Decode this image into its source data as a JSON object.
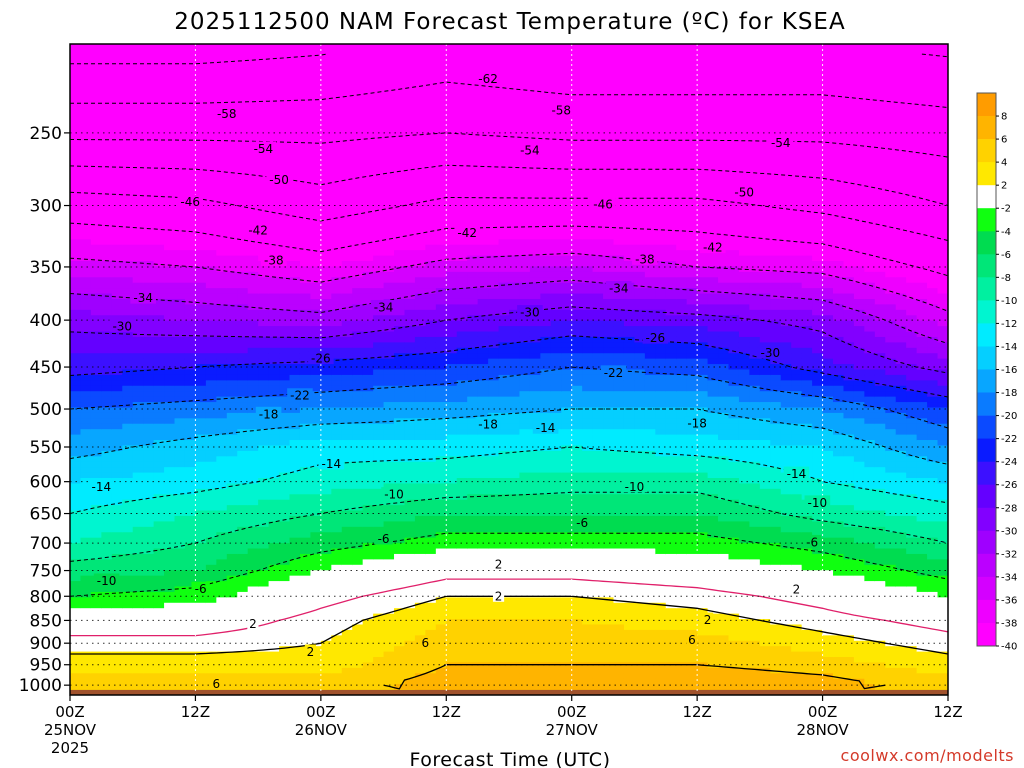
{
  "chart_data": {
    "type": "heatmap",
    "title": "2025112500 NAM Forecast Temperature (ºC) for KSEA",
    "xlabel": "Forecast Time (UTC)",
    "ylabel": "",
    "source": "coolwx.com/modelts",
    "y_scale": "log-pressure",
    "ylim": [
      1025,
      200
    ],
    "y_ticks": [
      250,
      300,
      350,
      400,
      450,
      500,
      550,
      600,
      650,
      700,
      750,
      800,
      850,
      900,
      950,
      1000
    ],
    "x_range_hours": [
      0,
      84
    ],
    "x_ticks": [
      {
        "hour": 0,
        "lines": [
          "00Z",
          "25NOV",
          "2025"
        ]
      },
      {
        "hour": 12,
        "lines": [
          "12Z"
        ]
      },
      {
        "hour": 24,
        "lines": [
          "00Z",
          "26NOV"
        ]
      },
      {
        "hour": 36,
        "lines": [
          "12Z"
        ]
      },
      {
        "hour": 48,
        "lines": [
          "00Z",
          "27NOV"
        ]
      },
      {
        "hour": 60,
        "lines": [
          "12Z"
        ]
      },
      {
        "hour": 72,
        "lines": [
          "00Z",
          "28NOV"
        ]
      },
      {
        "hour": 84,
        "lines": [
          "12Z"
        ]
      }
    ],
    "grid": true,
    "surface_pressure_hpa": 1012,
    "colorbar": {
      "placement": "right",
      "levels": [
        -40,
        -38,
        -36,
        -34,
        -32,
        -30,
        -28,
        -26,
        -24,
        -22,
        -20,
        -18,
        -16,
        -14,
        -12,
        -10,
        -8,
        -6,
        -4,
        -2,
        2,
        4,
        6,
        8
      ],
      "labels": [
        "-40",
        "-38",
        "-36",
        "-34",
        "-32",
        "-30",
        "-28",
        "-26",
        "-24",
        "-22",
        "-20",
        "-18",
        "-16",
        "-14",
        "-12",
        "-10",
        "-8",
        "-6",
        "-4",
        "-2",
        "2",
        "4",
        "6",
        "8"
      ],
      "colors": [
        "#ff00ff",
        "#ee00ff",
        "#d400ff",
        "#bb00ff",
        "#9f00ff",
        "#8200ff",
        "#6400ff",
        "#3c10ff",
        "#0a1bff",
        "#0b4aff",
        "#0a7bff",
        "#08a6ff",
        "#05cfff",
        "#00ebff",
        "#00f5d0",
        "#00f0a0",
        "#00e678",
        "#00dc50",
        "#10ff10",
        "#ffffff",
        "#ffe800",
        "#ffd200",
        "#ffb400",
        "#ff9c00"
      ]
    },
    "temperature_profiles": [
      {
        "hour": 0,
        "levels_hpa": [
          1000,
          950,
          900,
          850,
          800,
          750,
          700,
          650,
          600,
          550,
          500,
          450,
          400,
          350,
          300,
          250,
          200
        ],
        "temps_c": [
          5,
          3,
          1,
          -2,
          -6,
          -9,
          -12,
          -14,
          -16,
          -19,
          -22,
          -27,
          -31,
          -37,
          -44,
          -55,
          -64
        ]
      },
      {
        "hour": 12,
        "levels_hpa": [
          1000,
          950,
          900,
          850,
          800,
          750,
          700,
          650,
          600,
          550,
          500,
          450,
          400,
          350,
          300,
          250,
          200
        ],
        "temps_c": [
          6,
          3,
          1,
          -2,
          -5,
          -8,
          -10,
          -12,
          -15,
          -17,
          -21,
          -26,
          -32,
          -38,
          -45,
          -55,
          -64
        ]
      },
      {
        "hour": 24,
        "levels_hpa": [
          1000,
          950,
          900,
          850,
          800,
          750,
          700,
          650,
          600,
          550,
          500,
          450,
          400,
          350,
          300,
          250,
          200
        ],
        "temps_c": [
          5,
          3,
          2,
          1,
          -1,
          -4,
          -7,
          -10,
          -13,
          -15,
          -20,
          -25,
          -33,
          -40,
          -48,
          -55,
          -63
        ]
      },
      {
        "hour": 36,
        "levels_hpa": [
          1000,
          950,
          900,
          850,
          800,
          750,
          700,
          650,
          600,
          550,
          500,
          450,
          400,
          350,
          300,
          250,
          200
        ],
        "temps_c": [
          7,
          6,
          5,
          4,
          2,
          -1,
          -5,
          -8,
          -12,
          -15,
          -19,
          -24,
          -30,
          -37,
          -45,
          -54,
          -61
        ]
      },
      {
        "hour": 48,
        "levels_hpa": [
          1000,
          950,
          900,
          850,
          800,
          750,
          700,
          650,
          600,
          550,
          500,
          450,
          400,
          350,
          300,
          250,
          200
        ],
        "temps_c": [
          8,
          6,
          5,
          4,
          2,
          -1,
          -5,
          -8,
          -11,
          -14,
          -18,
          -22,
          -28,
          -36,
          -45,
          -55,
          -62
        ]
      },
      {
        "hour": 60,
        "levels_hpa": [
          1000,
          950,
          900,
          850,
          800,
          750,
          700,
          650,
          600,
          550,
          500,
          450,
          400,
          350,
          300,
          250,
          200
        ],
        "temps_c": [
          8,
          6,
          5,
          3,
          1,
          -2,
          -5,
          -8,
          -11,
          -15,
          -18,
          -23,
          -29,
          -38,
          -45,
          -55,
          -62
        ]
      },
      {
        "hour": 72,
        "levels_hpa": [
          1000,
          950,
          900,
          850,
          800,
          750,
          700,
          650,
          600,
          550,
          500,
          450,
          400,
          350,
          300,
          250,
          200
        ],
        "temps_c": [
          7,
          5,
          3,
          1,
          -1,
          -4,
          -7,
          -11,
          -14,
          -16,
          -20,
          -27,
          -31,
          -39,
          -47,
          -55,
          -62
        ]
      },
      {
        "hour": 84,
        "levels_hpa": [
          1000,
          950,
          900,
          850,
          800,
          750,
          700,
          650,
          600,
          550,
          500,
          450,
          400,
          350,
          300,
          250,
          200
        ],
        "temps_c": [
          5,
          3,
          1,
          -1,
          -4,
          -7,
          -10,
          -13,
          -16,
          -20,
          -24,
          -31,
          -37,
          -43,
          -50,
          -56,
          -63
        ]
      }
    ],
    "isotherm_labels": [
      {
        "text": "-62",
        "hour": 40,
        "hpa": 218
      },
      {
        "text": "-58",
        "hour": 15,
        "hpa": 238
      },
      {
        "text": "-58",
        "hour": 47,
        "hpa": 236
      },
      {
        "text": "-54",
        "hour": 18.5,
        "hpa": 260
      },
      {
        "text": "-54",
        "hour": 44,
        "hpa": 261
      },
      {
        "text": "-54",
        "hour": 68,
        "hpa": 256
      },
      {
        "text": "-50",
        "hour": 20,
        "hpa": 281
      },
      {
        "text": "-50",
        "hour": 64.5,
        "hpa": 290
      },
      {
        "text": "-46",
        "hour": 11.5,
        "hpa": 297
      },
      {
        "text": "-46",
        "hour": 51,
        "hpa": 299
      },
      {
        "text": "-42",
        "hour": 18,
        "hpa": 319
      },
      {
        "text": "-42",
        "hour": 38,
        "hpa": 321
      },
      {
        "text": "-42",
        "hour": 61.5,
        "hpa": 333
      },
      {
        "text": "-38",
        "hour": 19.5,
        "hpa": 344
      },
      {
        "text": "-38",
        "hour": 55,
        "hpa": 343
      },
      {
        "text": "-34",
        "hour": 7,
        "hpa": 378
      },
      {
        "text": "-34",
        "hour": 30,
        "hpa": 387
      },
      {
        "text": "-34",
        "hour": 52.5,
        "hpa": 369
      },
      {
        "text": "-30",
        "hour": 5,
        "hpa": 406
      },
      {
        "text": "-30",
        "hour": 44,
        "hpa": 392
      },
      {
        "text": "-30",
        "hour": 67,
        "hpa": 434
      },
      {
        "text": "-26",
        "hour": 24,
        "hpa": 440
      },
      {
        "text": "-26",
        "hour": 56,
        "hpa": 418
      },
      {
        "text": "-22",
        "hour": 22,
        "hpa": 483
      },
      {
        "text": "-22",
        "hour": 52,
        "hpa": 456
      },
      {
        "text": "-18",
        "hour": 19,
        "hpa": 506
      },
      {
        "text": "-18",
        "hour": 40,
        "hpa": 519
      },
      {
        "text": "-18",
        "hour": 60,
        "hpa": 518
      },
      {
        "text": "-14",
        "hour": 3,
        "hpa": 607
      },
      {
        "text": "-14",
        "hour": 25,
        "hpa": 573
      },
      {
        "text": "-14",
        "hour": 45.5,
        "hpa": 524
      },
      {
        "text": "-14",
        "hour": 69.5,
        "hpa": 588
      },
      {
        "text": "-10",
        "hour": 31,
        "hpa": 619
      },
      {
        "text": "-10",
        "hour": 54,
        "hpa": 607
      },
      {
        "text": "-10",
        "hour": 71.5,
        "hpa": 632
      },
      {
        "text": "-10",
        "hour": 3.5,
        "hpa": 769
      },
      {
        "text": "-6",
        "hour": 30,
        "hpa": 692
      },
      {
        "text": "-6",
        "hour": 49,
        "hpa": 665
      },
      {
        "text": "-6",
        "hour": 71,
        "hpa": 698
      },
      {
        "text": "-6",
        "hour": 12.5,
        "hpa": 785
      },
      {
        "text": "2",
        "hour": 41,
        "hpa": 738
      },
      {
        "text": "2",
        "hour": 41,
        "hpa": 799
      },
      {
        "text": "2",
        "hour": 69.5,
        "hpa": 786
      },
      {
        "text": "2",
        "hour": 17.5,
        "hpa": 857
      },
      {
        "text": "2",
        "hour": 61,
        "hpa": 848
      },
      {
        "text": "2",
        "hour": 23,
        "hpa": 919
      },
      {
        "text": "6",
        "hour": 34,
        "hpa": 898
      },
      {
        "text": "6",
        "hour": 59.5,
        "hpa": 892
      },
      {
        "text": "6",
        "hour": 14,
        "hpa": 996
      }
    ]
  }
}
